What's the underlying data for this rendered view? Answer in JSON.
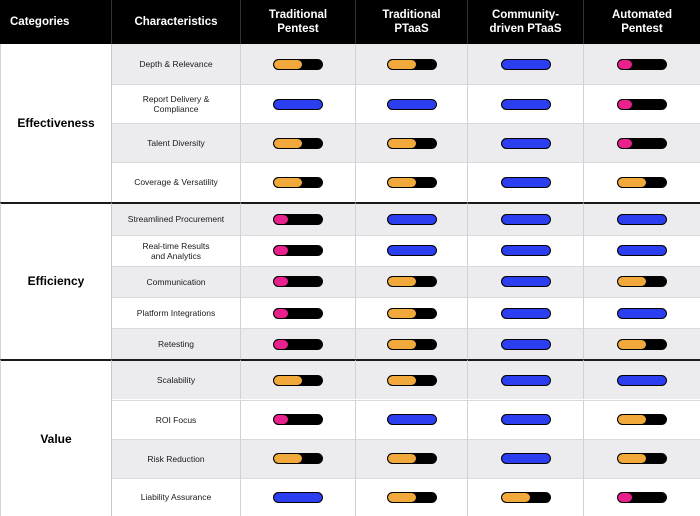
{
  "headers": [
    "Categories",
    "Characteristics",
    "Traditional\nPentest",
    "Traditional\nPTaaS",
    "Community-\ndriven PTaaS",
    "Automated\nPentest"
  ],
  "colors": {
    "low": "#e8218c",
    "medium": "#f2a93b",
    "high": "#2b3ef0"
  },
  "categories": [
    {
      "name": "Effectiveness",
      "rows": [
        {
          "label": "Depth & Relevance",
          "ratings": [
            "medium",
            "medium",
            "high",
            "low"
          ]
        },
        {
          "label": "Report Delivery &\nCompliance",
          "ratings": [
            "high",
            "high",
            "high",
            "low"
          ]
        },
        {
          "label": "Talent Diversity",
          "ratings": [
            "medium",
            "medium",
            "high",
            "low"
          ]
        },
        {
          "label": "Coverage & Versatility",
          "ratings": [
            "medium",
            "medium",
            "high",
            "medium"
          ]
        }
      ]
    },
    {
      "name": "Efficiency",
      "rows": [
        {
          "label": "Streamlined Procurement",
          "ratings": [
            "low",
            "high",
            "high",
            "high"
          ]
        },
        {
          "label": "Real-time Results\nand Analytics",
          "ratings": [
            "low",
            "high",
            "high",
            "high"
          ]
        },
        {
          "label": "Communication",
          "ratings": [
            "low",
            "medium",
            "high",
            "medium"
          ]
        },
        {
          "label": "Platform Integrations",
          "ratings": [
            "low",
            "medium",
            "high",
            "high"
          ]
        },
        {
          "label": "Retesting",
          "ratings": [
            "low",
            "medium",
            "high",
            "medium"
          ]
        }
      ]
    },
    {
      "name": "Value",
      "rows": [
        {
          "label": "Scalability",
          "ratings": [
            "medium",
            "medium",
            "high",
            "high"
          ]
        },
        {
          "label": "ROI Focus",
          "ratings": [
            "low",
            "high",
            "high",
            "medium"
          ]
        },
        {
          "label": "Risk Reduction",
          "ratings": [
            "medium",
            "medium",
            "high",
            "medium"
          ]
        },
        {
          "label": "Liability Assurance",
          "ratings": [
            "high",
            "medium",
            "medium",
            "low"
          ]
        }
      ]
    }
  ]
}
